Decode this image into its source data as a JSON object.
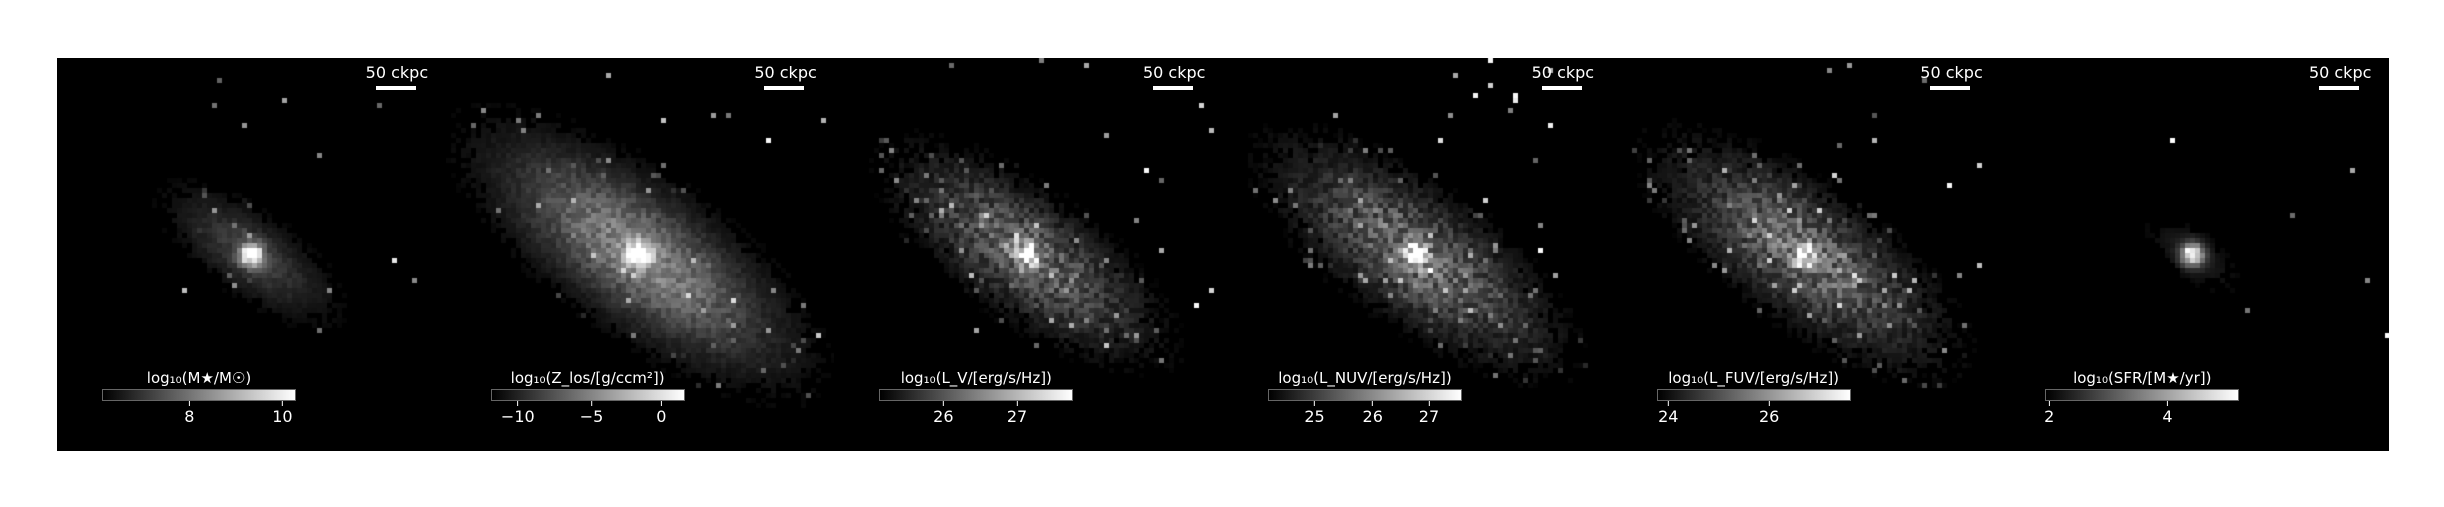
{
  "panels": [
    {
      "id": "mass",
      "scalebar": "50 ckpc",
      "colorbar_label": "log₁₀(M★/M☉)",
      "ticks": [
        "8",
        "10"
      ],
      "tick_fracs": [
        0.45,
        0.93
      ],
      "core": 1.0,
      "spread": 0.35,
      "noise": 0.25
    },
    {
      "id": "metallicity",
      "scalebar": "50 ckpc",
      "colorbar_label": "log₁₀(Z_los/[g/ccm²])",
      "ticks": [
        "−10",
        "−5",
        "0"
      ],
      "tick_fracs": [
        0.14,
        0.52,
        0.88
      ],
      "core": 1.0,
      "spread": 0.75,
      "noise": 0.3
    },
    {
      "id": "luv",
      "scalebar": "50 ckpc",
      "colorbar_label": "log₁₀(L_V/[erg/s/Hz])",
      "ticks": [
        "26",
        "27"
      ],
      "tick_fracs": [
        0.33,
        0.71
      ],
      "core": 0.95,
      "spread": 0.6,
      "noise": 0.55
    },
    {
      "id": "lnuv",
      "scalebar": "50 ckpc",
      "colorbar_label": "log₁₀(L_NUV/[erg/s/Hz])",
      "ticks": [
        "25",
        "26",
        "27"
      ],
      "tick_fracs": [
        0.24,
        0.54,
        0.83
      ],
      "core": 0.9,
      "spread": 0.65,
      "noise": 0.55
    },
    {
      "id": "lfuv",
      "scalebar": "50 ckpc",
      "colorbar_label": "log₁₀(L_FUV/[erg/s/Hz])",
      "ticks": [
        "24",
        "26"
      ],
      "tick_fracs": [
        0.06,
        0.58
      ],
      "core": 0.9,
      "spread": 0.65,
      "noise": 0.55
    },
    {
      "id": "sfr",
      "scalebar": "50 ckpc",
      "colorbar_label": "log₁₀(SFR/[M★/yr])",
      "ticks": [
        "2",
        "4"
      ],
      "tick_fracs": [
        0.02,
        0.63
      ],
      "core": 0.9,
      "spread": 0.15,
      "noise": 0.15
    }
  ]
}
